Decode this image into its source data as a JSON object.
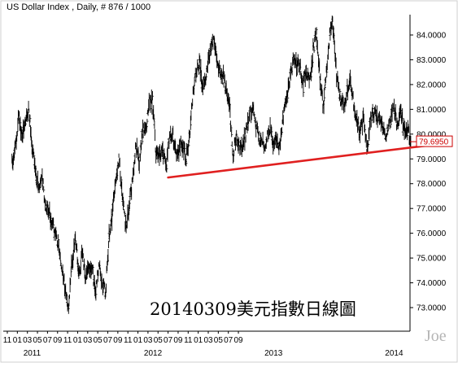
{
  "chart_data": {
    "type": "line",
    "title": "US Dollar Index , Daily, # 876 / 1000",
    "ylim": [
      72.5,
      84.8
    ],
    "y_ticks": [
      {
        "value": 84,
        "label": "84.0000"
      },
      {
        "value": 83,
        "label": "83.0000"
      },
      {
        "value": 82,
        "label": "82.0000"
      },
      {
        "value": 81,
        "label": "81.0000"
      },
      {
        "value": 80,
        "label": "80.0000"
      },
      {
        "value": 79,
        "label": "79.0000"
      },
      {
        "value": 78,
        "label": "78.0000"
      },
      {
        "value": 77,
        "label": "77.0000"
      },
      {
        "value": 76,
        "label": "76.0000"
      },
      {
        "value": 75,
        "label": "75.0000"
      },
      {
        "value": 74,
        "label": "74.0000"
      },
      {
        "value": 73,
        "label": "73.0000"
      }
    ],
    "x_month_labels": [
      "11",
      "01",
      "03",
      "05",
      "07",
      "09",
      "11",
      "01",
      "03",
      "05",
      "07",
      "09",
      "11",
      "01",
      "03",
      "05",
      "07",
      "09",
      "11",
      "01",
      "03",
      "05",
      "07",
      "09"
    ],
    "x_year_labels": [
      {
        "label": "2011",
        "at_month": "2011-01"
      },
      {
        "label": "2012",
        "at_month": "2012-01"
      },
      {
        "label": "2013",
        "at_month": "2013-01"
      },
      {
        "label": "2014",
        "at_month": "2014-01"
      }
    ],
    "x_start_month": "2010-11",
    "last_value": {
      "value": 79.695,
      "label": "79.6950",
      "color": "#cc0000"
    },
    "series": [
      {
        "color": "#000000",
        "points": [
          [
            "2010-11-15",
            78.8
          ],
          [
            "2010-11-25",
            79.3
          ],
          [
            "2010-12-05",
            80.8
          ],
          [
            "2010-12-15",
            79.9
          ],
          [
            "2010-12-25",
            80.4
          ],
          [
            "2011-01-05",
            81.0
          ],
          [
            "2011-01-15",
            79.5
          ],
          [
            "2011-01-25",
            78.6
          ],
          [
            "2011-02-05",
            77.8
          ],
          [
            "2011-02-15",
            78.3
          ],
          [
            "2011-02-25",
            77.1
          ],
          [
            "2011-03-05",
            76.9
          ],
          [
            "2011-03-15",
            76.4
          ],
          [
            "2011-03-25",
            76.0
          ],
          [
            "2011-04-05",
            75.5
          ],
          [
            "2011-04-15",
            74.6
          ],
          [
            "2011-04-25",
            73.7
          ],
          [
            "2011-05-03",
            72.9
          ],
          [
            "2011-05-12",
            74.6
          ],
          [
            "2011-05-25",
            75.9
          ],
          [
            "2011-06-05",
            74.3
          ],
          [
            "2011-06-15",
            75.2
          ],
          [
            "2011-06-25",
            74.2
          ],
          [
            "2011-07-05",
            74.7
          ],
          [
            "2011-07-15",
            74.5
          ],
          [
            "2011-07-25",
            73.6
          ],
          [
            "2011-08-05",
            74.7
          ],
          [
            "2011-08-15",
            73.9
          ],
          [
            "2011-08-25",
            73.7
          ],
          [
            "2011-09-05",
            75.9
          ],
          [
            "2011-09-15",
            76.7
          ],
          [
            "2011-09-25",
            78.3
          ],
          [
            "2011-10-05",
            79.0
          ],
          [
            "2011-10-15",
            77.4
          ],
          [
            "2011-10-25",
            76.2
          ],
          [
            "2011-11-05",
            77.2
          ],
          [
            "2011-11-15",
            78.1
          ],
          [
            "2011-11-25",
            79.6
          ],
          [
            "2011-12-05",
            78.8
          ],
          [
            "2011-12-15",
            80.1
          ],
          [
            "2011-12-25",
            80.2
          ],
          [
            "2012-01-05",
            81.4
          ],
          [
            "2012-01-15",
            81.3
          ],
          [
            "2012-01-25",
            79.3
          ],
          [
            "2012-02-05",
            79.2
          ],
          [
            "2012-02-15",
            79.4
          ],
          [
            "2012-02-25",
            78.6
          ],
          [
            "2012-03-05",
            79.8
          ],
          [
            "2012-03-15",
            80.0
          ],
          [
            "2012-03-25",
            79.1
          ],
          [
            "2012-04-05",
            79.4
          ],
          [
            "2012-04-15",
            79.6
          ],
          [
            "2012-04-25",
            79.0
          ],
          [
            "2012-05-05",
            79.9
          ],
          [
            "2012-05-15",
            81.6
          ],
          [
            "2012-05-25",
            82.5
          ],
          [
            "2012-06-05",
            82.9
          ],
          [
            "2012-06-15",
            81.9
          ],
          [
            "2012-06-25",
            82.4
          ],
          [
            "2012-07-05",
            83.3
          ],
          [
            "2012-07-15",
            83.7
          ],
          [
            "2012-07-25",
            83.4
          ],
          [
            "2012-08-05",
            82.5
          ],
          [
            "2012-08-15",
            82.4
          ],
          [
            "2012-08-25",
            81.7
          ],
          [
            "2012-09-05",
            81.0
          ],
          [
            "2012-09-15",
            79.1
          ],
          [
            "2012-09-25",
            79.9
          ],
          [
            "2012-10-05",
            79.4
          ],
          [
            "2012-10-15",
            79.6
          ],
          [
            "2012-10-25",
            80.1
          ],
          [
            "2012-11-05",
            80.9
          ],
          [
            "2012-11-15",
            81.0
          ],
          [
            "2012-11-25",
            80.3
          ],
          [
            "2012-12-05",
            79.8
          ],
          [
            "2012-12-15",
            79.6
          ],
          [
            "2012-12-25",
            79.7
          ],
          [
            "2013-01-05",
            80.3
          ],
          [
            "2013-01-15",
            79.5
          ],
          [
            "2013-01-25",
            79.7
          ],
          [
            "2013-02-05",
            79.4
          ],
          [
            "2013-02-15",
            80.6
          ],
          [
            "2013-02-25",
            81.4
          ],
          [
            "2013-03-05",
            82.3
          ],
          [
            "2013-03-15",
            82.9
          ],
          [
            "2013-03-25",
            82.8
          ],
          [
            "2013-04-05",
            82.7
          ],
          [
            "2013-04-15",
            82.0
          ],
          [
            "2013-04-25",
            82.6
          ],
          [
            "2013-05-05",
            82.1
          ],
          [
            "2013-05-15",
            83.5
          ],
          [
            "2013-05-25",
            84.1
          ],
          [
            "2013-06-05",
            82.2
          ],
          [
            "2013-06-15",
            81.1
          ],
          [
            "2013-06-25",
            82.7
          ],
          [
            "2013-07-05",
            84.2
          ],
          [
            "2013-07-12",
            84.5
          ],
          [
            "2013-07-25",
            82.3
          ],
          [
            "2013-08-05",
            81.4
          ],
          [
            "2013-08-15",
            81.2
          ],
          [
            "2013-08-25",
            81.6
          ],
          [
            "2013-09-05",
            82.4
          ],
          [
            "2013-09-15",
            81.2
          ],
          [
            "2013-09-25",
            80.5
          ],
          [
            "2013-10-05",
            80.1
          ],
          [
            "2013-10-15",
            80.6
          ],
          [
            "2013-10-25",
            79.3
          ],
          [
            "2013-11-05",
            80.6
          ],
          [
            "2013-11-15",
            80.9
          ],
          [
            "2013-11-25",
            80.7
          ],
          [
            "2013-12-05",
            80.6
          ],
          [
            "2013-12-15",
            80.2
          ],
          [
            "2013-12-25",
            80.0
          ],
          [
            "2014-01-05",
            80.5
          ],
          [
            "2014-01-15",
            81.2
          ],
          [
            "2014-01-25",
            80.4
          ],
          [
            "2014-02-05",
            81.0
          ],
          [
            "2014-02-15",
            80.2
          ],
          [
            "2014-02-25",
            80.3
          ],
          [
            "2014-03-03",
            79.9
          ],
          [
            "2014-03-07",
            79.695
          ]
        ]
      }
    ],
    "trendline": {
      "color": "#e02020",
      "from": [
        "2012-03-01",
        78.25
      ],
      "to": [
        "2014-05-01",
        79.55
      ]
    },
    "annotations": [
      {
        "text": "20140309美元指數日線圖"
      },
      {
        "text": "Joe",
        "kind": "watermark"
      }
    ]
  }
}
